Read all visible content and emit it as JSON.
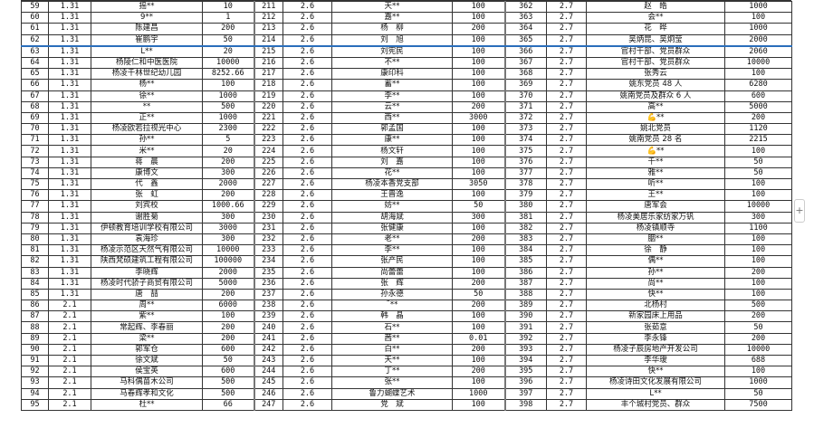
{
  "rows": [
    [
      [
        "59",
        "1.31",
        "摇**",
        "10"
      ],
      [
        "211",
        "2.6",
        "天**",
        "100"
      ],
      [
        "362",
        "2.7",
        "赵　皓",
        "1000"
      ]
    ],
    [
      [
        "60",
        "1.31",
        "9**",
        "1"
      ],
      [
        "212",
        "2.6",
        "嘉**",
        "100"
      ],
      [
        "363",
        "2.7",
        "会**",
        "100"
      ]
    ],
    [
      [
        "61",
        "1.31",
        "陈建昌",
        "200"
      ],
      [
        "213",
        "2.6",
        "杨　柳",
        "200"
      ],
      [
        "364",
        "2.7",
        "花　晔",
        "1000"
      ]
    ],
    [
      [
        "62",
        "1.31",
        "崔鹏宇",
        "50"
      ],
      [
        "214",
        "2.6",
        "刘　旭",
        "100"
      ],
      [
        "365",
        "2.7",
        "吴炳昆、吴炯莹",
        "2000"
      ]
    ],
    [
      [
        "63",
        "1.31",
        "L**",
        "20"
      ],
      [
        "215",
        "2.6",
        "刘宪民",
        "100"
      ],
      [
        "366",
        "2.7",
        "官村干部、党员群众",
        "2060"
      ]
    ],
    [
      [
        "64",
        "1.31",
        "杨陵仁和中医医院",
        "10000"
      ],
      [
        "216",
        "2.6",
        "不**",
        "100"
      ],
      [
        "367",
        "2.7",
        "官村干部、党员群众",
        "10000"
      ]
    ],
    [
      [
        "65",
        "1.31",
        "杨凌千林世纪幼儿园",
        "8252.66"
      ],
      [
        "217",
        "2.6",
        "康印科",
        "100"
      ],
      [
        "368",
        "2.7",
        "张秀云",
        "100"
      ]
    ],
    [
      [
        "66",
        "1.31",
        "杨**",
        "100"
      ],
      [
        "218",
        "2.6",
        "蓄**",
        "100"
      ],
      [
        "369",
        "2.7",
        "姚东党员 48 人",
        "6280"
      ]
    ],
    [
      [
        "67",
        "1.31",
        "徐**",
        "1000"
      ],
      [
        "219",
        "2.6",
        "李**",
        "100"
      ],
      [
        "370",
        "2.7",
        "姚南党员及群众 6 人",
        "600"
      ]
    ],
    [
      [
        "68",
        "1.31",
        "**",
        "500"
      ],
      [
        "220",
        "2.6",
        "云**",
        "200"
      ],
      [
        "371",
        "2.7",
        "高**",
        "5000"
      ]
    ],
    [
      [
        "69",
        "1.31",
        "正**",
        "1000"
      ],
      [
        "221",
        "2.6",
        "西**",
        "3000"
      ],
      [
        "372",
        "2.7",
        "💪**",
        "200"
      ]
    ],
    [
      [
        "70",
        "1.31",
        "杨凌欧若拉视光中心",
        "2300"
      ],
      [
        "222",
        "2.6",
        "郭孟国",
        "100"
      ],
      [
        "373",
        "2.7",
        "姚北党员",
        "1120"
      ]
    ],
    [
      [
        "71",
        "1.31",
        "孙**",
        "5"
      ],
      [
        "223",
        "2.6",
        "康**",
        "100"
      ],
      [
        "374",
        "2.7",
        "姚南党员 28 名",
        "2215"
      ]
    ],
    [
      [
        "72",
        "1.31",
        "米**",
        "20"
      ],
      [
        "224",
        "2.6",
        "杨文轩",
        "100"
      ],
      [
        "375",
        "2.7",
        "💪**",
        "100"
      ]
    ],
    [
      [
        "73",
        "1.31",
        "蒋　晨",
        "200"
      ],
      [
        "225",
        "2.6",
        "刘　嘉",
        "100"
      ],
      [
        "376",
        "2.7",
        "千**",
        "50"
      ]
    ],
    [
      [
        "74",
        "1.31",
        "康博文",
        "300"
      ],
      [
        "226",
        "2.6",
        "花**",
        "100"
      ],
      [
        "377",
        "2.7",
        "雅**",
        "50"
      ]
    ],
    [
      [
        "75",
        "1.31",
        "代　鑫",
        "2000"
      ],
      [
        "227",
        "2.6",
        "杨凌本香党支部",
        "3050"
      ],
      [
        "378",
        "2.7",
        "听**",
        "100"
      ]
    ],
    [
      [
        "76",
        "1.31",
        "张　虹",
        "200"
      ],
      [
        "228",
        "2.6",
        "王晋逸",
        "100"
      ],
      [
        "379",
        "2.7",
        "王**",
        "100"
      ]
    ],
    [
      [
        "77",
        "1.31",
        "刘宾校",
        "1000.66"
      ],
      [
        "229",
        "2.6",
        "妨**",
        "50"
      ],
      [
        "380",
        "2.7",
        "唐军会",
        "10000"
      ]
    ],
    [
      [
        "78",
        "1.31",
        "谢胜菊",
        "300"
      ],
      [
        "230",
        "2.6",
        "胡海斌",
        "300"
      ],
      [
        "381",
        "2.7",
        "杨凌美居乐家纺家万钒",
        "300"
      ]
    ],
    [
      [
        "79",
        "1.31",
        "伊顿教育培训学校有限公司",
        "3000"
      ],
      [
        "231",
        "2.6",
        "张健康",
        "100"
      ],
      [
        "382",
        "2.7",
        "杨凌镇顺寺",
        "1100"
      ]
    ],
    [
      [
        "80",
        "1.31",
        "袁海珍",
        "300"
      ],
      [
        "232",
        "2.6",
        "老**",
        "200"
      ],
      [
        "383",
        "2.7",
        "胭**",
        "100"
      ]
    ],
    [
      [
        "81",
        "1.31",
        "杨凌示范区天然气有限公司",
        "10000"
      ],
      [
        "233",
        "2.6",
        "李**",
        "100"
      ],
      [
        "384",
        "2.7",
        "徐　静",
        "100"
      ]
    ],
    [
      [
        "82",
        "1.31",
        "陕西梵硕建筑工程有限公司",
        "100000"
      ],
      [
        "234",
        "2.6",
        "张产民",
        "100"
      ],
      [
        "385",
        "2.7",
        "偶**",
        "100"
      ]
    ],
    [
      [
        "83",
        "1.31",
        "李晓辉",
        "2000"
      ],
      [
        "235",
        "2.6",
        "尚蕾蕾",
        "100"
      ],
      [
        "386",
        "2.7",
        "孙**",
        "200"
      ]
    ],
    [
      [
        "84",
        "1.31",
        "杨凌时代骄子商贸有限公司",
        "5000"
      ],
      [
        "236",
        "2.6",
        "张　辉",
        "200"
      ],
      [
        "387",
        "2.7",
        "尚**",
        "100"
      ]
    ],
    [
      [
        "85",
        "1.31",
        "唐　喆",
        "200"
      ],
      [
        "237",
        "2.6",
        "孙永德",
        "50"
      ],
      [
        "388",
        "2.7",
        "快**",
        "100"
      ]
    ],
    [
      [
        "86",
        "2.1",
        "周**",
        "6000"
      ],
      [
        "238",
        "2.6",
        "˜**",
        "200"
      ],
      [
        "389",
        "2.7",
        "北杨村",
        "500"
      ]
    ],
    [
      [
        "87",
        "2.1",
        "紫**",
        "100"
      ],
      [
        "239",
        "2.6",
        "韩　晶",
        "100"
      ],
      [
        "390",
        "2.7",
        "新家园床上用品",
        "200"
      ]
    ],
    [
      [
        "88",
        "2.1",
        "常起辉、李春丽",
        "200"
      ],
      [
        "240",
        "2.6",
        "石**",
        "100"
      ],
      [
        "391",
        "2.7",
        "张茹意",
        "50"
      ]
    ],
    [
      [
        "89",
        "2.1",
        "梁**",
        "200"
      ],
      [
        "241",
        "2.6",
        "茜**",
        "0.01"
      ],
      [
        "392",
        "2.7",
        "李永锋",
        "200"
      ]
    ],
    [
      [
        "90",
        "2.1",
        "郭军仓",
        "600"
      ],
      [
        "242",
        "2.6",
        "白**",
        "200"
      ],
      [
        "393",
        "2.7",
        "杨凌子辰房地产开发公司",
        "10000"
      ]
    ],
    [
      [
        "91",
        "2.1",
        "徐文斌",
        "50"
      ],
      [
        "243",
        "2.6",
        "天**",
        "100"
      ],
      [
        "394",
        "2.7",
        "李华瑷",
        "688"
      ]
    ],
    [
      [
        "92",
        "2.1",
        "侯宝英",
        "600"
      ],
      [
        "244",
        "2.6",
        "丁**",
        "200"
      ],
      [
        "395",
        "2.7",
        "快**",
        "100"
      ]
    ],
    [
      [
        "93",
        "2.1",
        "马科偶苗木公司",
        "500"
      ],
      [
        "245",
        "2.6",
        "张**",
        "100"
      ],
      [
        "396",
        "2.7",
        "杨凌诗田文化发展有限公司",
        "1000"
      ]
    ],
    [
      [
        "94",
        "2.1",
        "马春辉孝和文化",
        "500"
      ],
      [
        "246",
        "2.6",
        "鲁力蝴蝶艺术",
        "1000"
      ],
      [
        "397",
        "2.7",
        "L**",
        "50"
      ]
    ],
    [
      [
        "95",
        "2.1",
        "杜**",
        "66"
      ],
      [
        "247",
        "2.6",
        "党　斌",
        "100"
      ],
      [
        "398",
        "2.7",
        "丰个城村党员、群众",
        "7500"
      ]
    ]
  ],
  "frozen_after_row": "62",
  "add_button": "+",
  "colors": {
    "freeze_line": "#2a6ebb",
    "grid": "#333333"
  }
}
